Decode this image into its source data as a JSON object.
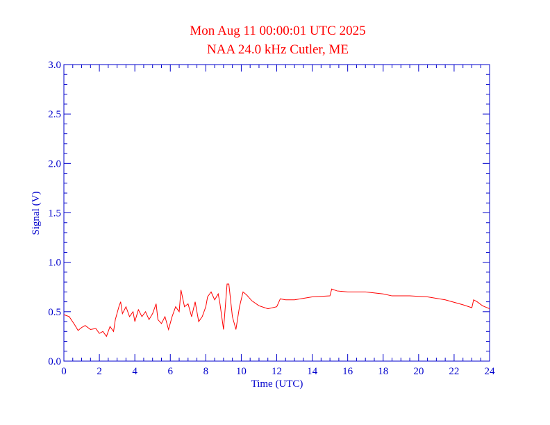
{
  "chart_data": {
    "type": "line",
    "title": "Mon Aug 11 00:00:01 UTC 2025",
    "subtitle": "NAA 24.0 kHz Cutler, ME",
    "xlabel": "Time (UTC)",
    "ylabel": "Signal (V)",
    "xlim": [
      0,
      24
    ],
    "ylim": [
      0,
      3
    ],
    "xticks": [
      0,
      2,
      4,
      6,
      8,
      10,
      12,
      14,
      16,
      18,
      20,
      22,
      24
    ],
    "yticks": [
      {
        "value": 0,
        "label": "0.0"
      },
      0.5,
      {
        "value": 1,
        "label": "1.0"
      },
      1.5,
      {
        "value": 2,
        "label": "2.0"
      },
      2.5,
      {
        "value": 3,
        "label": "3.0"
      }
    ],
    "xticks_minor": [
      0.5,
      1,
      1.5,
      2.5,
      3,
      3.5,
      4.5,
      5,
      5.5,
      6.5,
      7,
      7.5,
      8.5,
      9,
      9.5,
      10.5,
      11,
      11.5,
      12.5,
      13,
      13.5,
      14.5,
      15,
      15.5,
      16.5,
      17,
      17.5,
      18.5,
      19,
      19.5,
      20.5,
      21,
      21.5,
      22.5,
      23,
      23.5
    ],
    "yticks_minor": [
      0.1,
      0.2,
      0.3,
      0.4,
      0.6,
      0.7,
      0.8,
      0.9,
      1.1,
      1.2,
      1.3,
      1.4,
      1.6,
      1.7,
      1.8,
      1.9,
      2.1,
      2.2,
      2.3,
      2.4,
      2.6,
      2.7,
      2.8,
      2.9
    ],
    "title_color": "#ff0000",
    "axis_color": "#0000cc",
    "series": [
      {
        "color": "#ff0000",
        "x": [
          0,
          0.3,
          0.6,
          0.8,
          1.0,
          1.2,
          1.5,
          1.8,
          2.0,
          2.2,
          2.4,
          2.6,
          2.8,
          2.9,
          3.1,
          3.2,
          3.3,
          3.5,
          3.7,
          3.9,
          4.0,
          4.2,
          4.4,
          4.6,
          4.8,
          5.0,
          5.2,
          5.3,
          5.5,
          5.7,
          5.9,
          6.1,
          6.3,
          6.5,
          6.6,
          6.8,
          7.0,
          7.2,
          7.4,
          7.6,
          7.8,
          8.0,
          8.1,
          8.3,
          8.5,
          8.7,
          8.8,
          9.0,
          9.1,
          9.2,
          9.3,
          9.5,
          9.7,
          9.9,
          10.1,
          10.3,
          10.6,
          11.0,
          11.5,
          12.0,
          12.2,
          12.5,
          13.0,
          14.0,
          15.0,
          15.1,
          15.4,
          16.0,
          17.0,
          18.0,
          18.5,
          19.5,
          20.5,
          21.5,
          22.5,
          23.0,
          23.1,
          23.3,
          23.6,
          24.0
        ],
        "values": [
          0.47,
          0.45,
          0.37,
          0.31,
          0.34,
          0.36,
          0.32,
          0.33,
          0.28,
          0.3,
          0.25,
          0.35,
          0.3,
          0.42,
          0.55,
          0.6,
          0.48,
          0.55,
          0.45,
          0.5,
          0.4,
          0.52,
          0.45,
          0.5,
          0.42,
          0.48,
          0.58,
          0.42,
          0.38,
          0.45,
          0.32,
          0.45,
          0.55,
          0.5,
          0.72,
          0.55,
          0.58,
          0.45,
          0.6,
          0.4,
          0.45,
          0.55,
          0.65,
          0.7,
          0.62,
          0.68,
          0.58,
          0.32,
          0.55,
          0.78,
          0.78,
          0.45,
          0.32,
          0.55,
          0.7,
          0.67,
          0.61,
          0.56,
          0.53,
          0.55,
          0.63,
          0.62,
          0.62,
          0.65,
          0.66,
          0.73,
          0.71,
          0.7,
          0.7,
          0.68,
          0.66,
          0.66,
          0.65,
          0.62,
          0.57,
          0.54,
          0.62,
          0.6,
          0.56,
          0.53
        ]
      }
    ]
  }
}
